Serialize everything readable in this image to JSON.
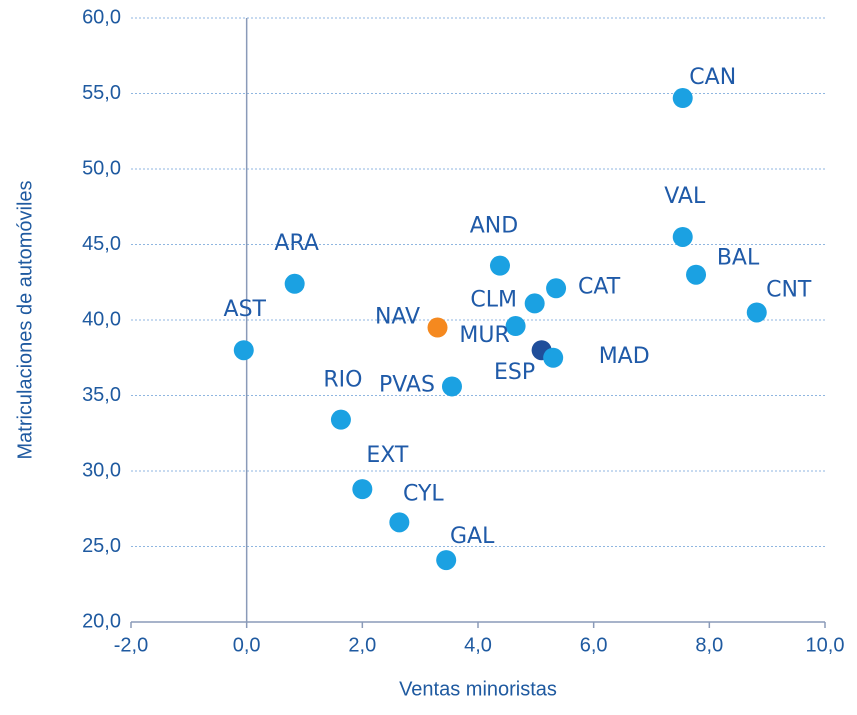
{
  "chart_data": {
    "type": "scatter",
    "x_label": "Ventas minoristas",
    "y_label": "Matriculaciones de automóviles",
    "labels": [
      "CAN",
      "VAL",
      "BAL",
      "CNT",
      "AND",
      "CAT",
      "CLM",
      "MUR",
      "ESP",
      "MAD",
      "NAV",
      "PVAS",
      "ARA",
      "AST",
      "RIO",
      "EXT",
      "CYL",
      "GAL"
    ],
    "x": [
      7.54,
      7.54,
      7.77,
      8.82,
      4.38,
      5.35,
      4.98,
      4.65,
      5.1,
      5.3,
      3.3,
      3.55,
      0.83,
      -0.05,
      1.63,
      2.0,
      2.64,
      3.45
    ],
    "y": [
      54.7,
      45.5,
      43.0,
      40.5,
      43.6,
      42.1,
      41.1,
      39.6,
      38.0,
      37.5,
      39.5,
      35.6,
      42.4,
      38.0,
      33.4,
      28.8,
      26.6,
      24.1
    ],
    "colors": [
      "#1ba1e2",
      "#1ba1e2",
      "#1ba1e2",
      "#1ba1e2",
      "#1ba1e2",
      "#1ba1e2",
      "#1ba1e2",
      "#1ba1e2",
      "#1f4e9a",
      "#1ba1e2",
      "#f5891f",
      "#1ba1e2",
      "#1ba1e2",
      "#1ba1e2",
      "#1ba1e2",
      "#1ba1e2",
      "#1ba1e2",
      "#1ba1e2"
    ],
    "xlim": [
      -2,
      10
    ],
    "ylim": [
      20,
      60
    ],
    "xticks": [
      {
        "value": -2,
        "label": "-2,0"
      },
      {
        "value": 0,
        "label": "0,0"
      },
      {
        "value": 2,
        "label": "2,0"
      },
      {
        "value": 4,
        "label": "4,0"
      },
      {
        "value": 6,
        "label": "6,0"
      },
      {
        "value": 8,
        "label": "8,0"
      },
      {
        "value": 10,
        "label": "10,0"
      }
    ],
    "yticks": [
      {
        "value": 20,
        "label": "20,0"
      },
      {
        "value": 25,
        "label": "25,0"
      },
      {
        "value": 30,
        "label": "30,0"
      },
      {
        "value": 35,
        "label": "35,0"
      },
      {
        "value": 40,
        "label": "40,0"
      },
      {
        "value": 45,
        "label": "45,0"
      },
      {
        "value": 50,
        "label": "50,0"
      },
      {
        "value": 55,
        "label": "55,0"
      },
      {
        "value": 60,
        "label": "60,0"
      }
    ],
    "grid": true
  }
}
